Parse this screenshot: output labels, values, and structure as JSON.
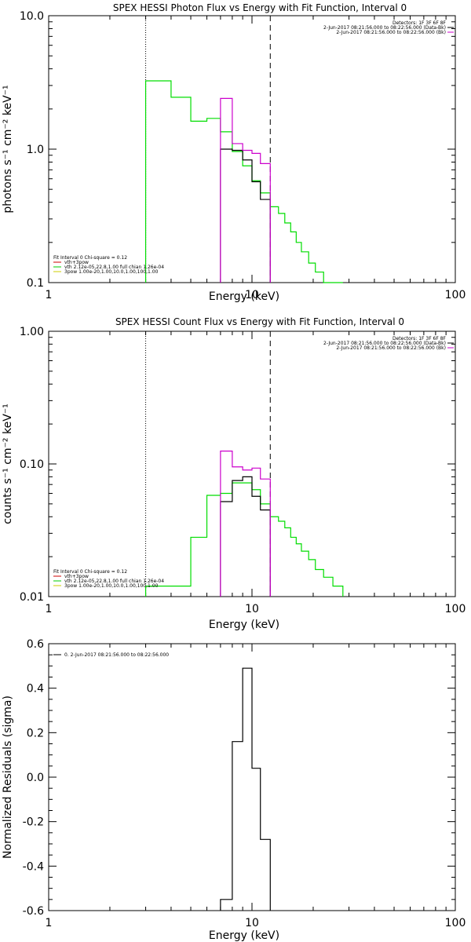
{
  "chart_data": [
    {
      "type": "line",
      "title": "SPEX HESSI Photon Flux vs Energy with Fit Function, Interval 0",
      "xlabel": "Energy (keV)",
      "ylabel": "photons s⁻¹ cm⁻² keV⁻¹",
      "xscale": "log",
      "yscale": "log",
      "xlim": [
        1,
        100
      ],
      "ylim": [
        0.1,
        10
      ],
      "xticks": [
        "1",
        "10",
        "100"
      ],
      "yticks": [
        "0.1",
        "1.0",
        "10.0"
      ],
      "vlines": [
        {
          "x": 3,
          "style": "dotted"
        },
        {
          "x": 12.3,
          "style": "dashed"
        }
      ],
      "legend_right": [
        {
          "text": "Detectors: 1F 3F 6F 8F",
          "color": ""
        },
        {
          "text": "2-Jun-2017 08:21:56.000 to 08:22:56.000 (Data-Bk)",
          "color": "#000000"
        },
        {
          "text": "2-Jun-2017 08:21:56.000 to 08:22:56.000 (Bk)",
          "color": "#cc00cc"
        }
      ],
      "legend_left": [
        {
          "text": "Fit Interval 0   Chi-square = 0.12",
          "color": ""
        },
        {
          "text": "vth+3pow",
          "color": "#cc0000"
        },
        {
          "text": "vth 2.12e-05,22.8,1.00  full chian 1.26e-04",
          "color": "#00cc00"
        },
        {
          "text": "3pow 1.00e-20,1.00,10.0,1.00,100,1.00",
          "color": "#cccc00"
        }
      ],
      "series": [
        {
          "color": "#00dd00",
          "edges": [
            3,
            4,
            5,
            6,
            7,
            8,
            9,
            10,
            11,
            12.3,
            13.5,
            14.5,
            15.5,
            16.5,
            17.5,
            19,
            20.5,
            22.5,
            25,
            28
          ],
          "values": [
            3.25,
            2.45,
            1.62,
            1.7,
            1.35,
            0.96,
            0.75,
            0.58,
            0.47,
            0.37,
            0.33,
            0.28,
            0.24,
            0.2,
            0.17,
            0.14,
            0.12,
            0.1,
            0.09
          ]
        },
        {
          "color": "#000000",
          "edges": [
            7,
            8,
            9,
            10,
            11,
            12.3
          ],
          "values": [
            1.0,
            0.98,
            0.83,
            0.57,
            0.42
          ]
        },
        {
          "color": "#cc00cc",
          "edges": [
            7,
            8,
            9,
            10,
            11,
            12.3
          ],
          "values": [
            2.4,
            1.1,
            0.98,
            0.93,
            0.78
          ]
        }
      ]
    },
    {
      "type": "line",
      "title": "SPEX HESSI Count Flux vs Energy with Fit Function, Interval 0",
      "xlabel": "Energy (keV)",
      "ylabel": "counts s⁻¹ cm⁻² keV⁻¹",
      "xscale": "log",
      "yscale": "log",
      "xlim": [
        1,
        100
      ],
      "ylim": [
        0.01,
        1
      ],
      "xticks": [
        "1",
        "10",
        "100"
      ],
      "yticks": [
        "0.01",
        "0.10",
        "1.00"
      ],
      "vlines": [
        {
          "x": 3,
          "style": "dotted"
        },
        {
          "x": 12.3,
          "style": "dashed"
        }
      ],
      "legend_right": [
        {
          "text": "Detectors: 1F 3F 6F 8F",
          "color": ""
        },
        {
          "text": "2-Jun-2017 08:21:56.000 to 08:22:56.000 (Data-Bk)",
          "color": "#000000"
        },
        {
          "text": "2-Jun-2017 08:21:56.000 to 08:22:56.000 (Bk)",
          "color": "#cc00cc"
        }
      ],
      "legend_left": [
        {
          "text": "Fit Interval 0   Chi-square = 0.12",
          "color": ""
        },
        {
          "text": "vth+3pow",
          "color": "#cc0000"
        },
        {
          "text": "vth 2.12e-05,22.8,1.00  full chian 1.26e-04",
          "color": "#00cc00"
        },
        {
          "text": "3pow 1.00e-20,1.00,10.0,1.00,100,1.00",
          "color": "#cccc00"
        }
      ],
      "series": [
        {
          "color": "#00dd00",
          "edges": [
            3,
            4,
            5,
            6,
            7,
            8,
            9,
            10,
            11,
            12.3,
            13.5,
            14.5,
            15.5,
            16.5,
            17.5,
            19,
            20.5,
            22.5,
            25,
            28
          ],
          "values": [
            0.012,
            0.012,
            0.028,
            0.058,
            0.06,
            0.072,
            0.072,
            0.064,
            0.05,
            0.04,
            0.037,
            0.033,
            0.028,
            0.025,
            0.022,
            0.019,
            0.016,
            0.014,
            0.012
          ]
        },
        {
          "color": "#000000",
          "edges": [
            7,
            8,
            9,
            10,
            11,
            12.3
          ],
          "values": [
            0.052,
            0.075,
            0.08,
            0.057,
            0.045
          ]
        },
        {
          "color": "#cc00cc",
          "edges": [
            7,
            8,
            9,
            10,
            11,
            12.3
          ],
          "values": [
            0.125,
            0.095,
            0.09,
            0.093,
            0.077
          ]
        }
      ]
    },
    {
      "type": "line",
      "title": "",
      "xlabel": "Energy (keV)",
      "ylabel": "Normalized Residuals (sigma)",
      "xscale": "log",
      "yscale": "linear",
      "xlim": [
        1,
        100
      ],
      "ylim": [
        -0.6,
        0.6
      ],
      "xticks": [
        "1",
        "10",
        "100"
      ],
      "yticks": [
        "-0.6",
        "-0.4",
        "-0.2",
        "0.0",
        "0.2",
        "0.4",
        "0.6"
      ],
      "legend_left": [
        {
          "text": "0. 2-Jun-2017 08:21:56.000 to 08:22:56.000",
          "color": "#000000"
        }
      ],
      "series": [
        {
          "color": "#000000",
          "edges": [
            7,
            8,
            9,
            10,
            11,
            12.3
          ],
          "values": [
            -0.55,
            0.16,
            0.49,
            0.04,
            -0.28
          ]
        }
      ]
    }
  ]
}
